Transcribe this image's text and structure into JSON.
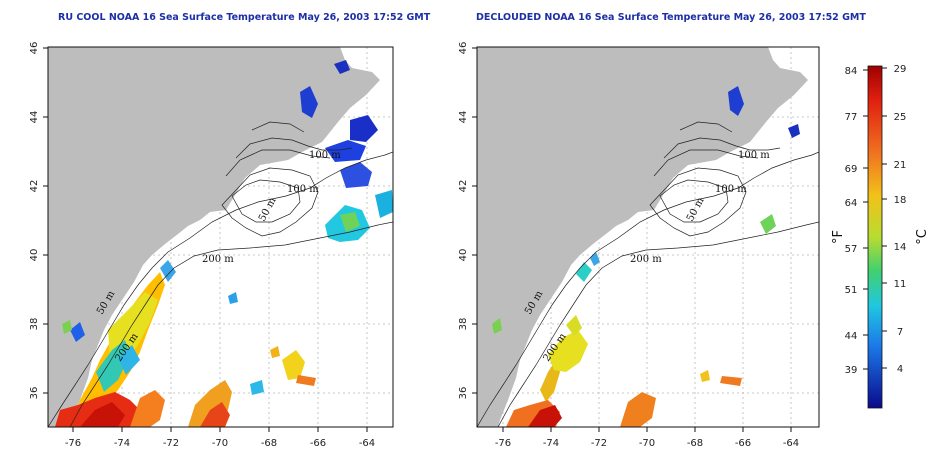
{
  "panels": [
    {
      "title": "RU COOL NOAA 16 Sea Surface Temperature May 26, 2003 17:52 GMT"
    },
    {
      "title": "DECLOUDED NOAA 16 Sea Surface Temperature May 26, 2003 17:52 GMT"
    }
  ],
  "axes": {
    "x_ticks": [
      "-76",
      "-74",
      "-72",
      "-70",
      "-68",
      "-66",
      "-64"
    ],
    "y_ticks": [
      "36",
      "38",
      "40",
      "42",
      "44",
      "46"
    ]
  },
  "contours": [
    "100 m",
    "100 m",
    "50 m",
    "200 m",
    "50 m",
    "200 m"
  ],
  "colorbar": {
    "f_label": "°F",
    "c_label": "°C",
    "f_ticks": [
      "84",
      "77",
      "69",
      "64",
      "57",
      "51",
      "44",
      "39"
    ],
    "c_ticks": [
      "29",
      "25",
      "21",
      "18",
      "14",
      "11",
      "7",
      "4"
    ]
  },
  "colors": {
    "land": "#bdbdbd",
    "title": "#1c2fa6",
    "ramp_top": "#a00000",
    "ramp_bottom": "#0a0a8c"
  }
}
